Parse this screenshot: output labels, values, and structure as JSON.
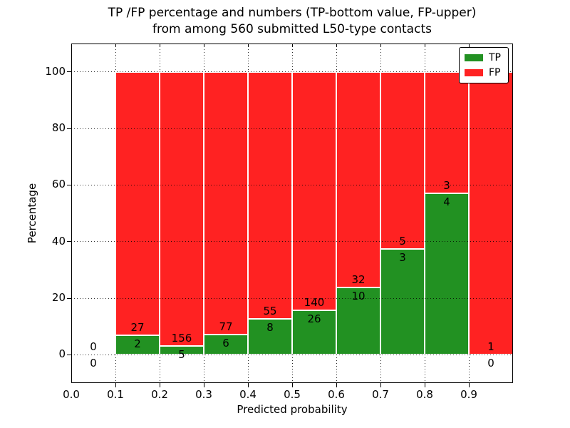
{
  "figure": {
    "title_line1": "TP /FP percentage and numbers (TP-bottom value, FP-upper)",
    "title_line2": "from among 560 submitted L50-type contacts"
  },
  "chart_data": {
    "type": "bar",
    "stacked": true,
    "title": "TP /FP percentage and numbers (TP-bottom value, FP-upper)\nfrom among 560 submitted L50-type contacts",
    "xlabel": "Predicted probability",
    "ylabel": "Percentage",
    "xlim": [
      0.0,
      1.0
    ],
    "ylim": [
      -10,
      110
    ],
    "grid": "dotted",
    "total_contacts": 560,
    "bin_width": 0.1,
    "xticks": [
      {
        "v": 0.0,
        "label": "0.0"
      },
      {
        "v": 0.1,
        "label": "0.1"
      },
      {
        "v": 0.2,
        "label": "0.2"
      },
      {
        "v": 0.3,
        "label": "0.3"
      },
      {
        "v": 0.4,
        "label": "0.4"
      },
      {
        "v": 0.5,
        "label": "0.5"
      },
      {
        "v": 0.6,
        "label": "0.6"
      },
      {
        "v": 0.7,
        "label": "0.7"
      },
      {
        "v": 0.8,
        "label": "0.8"
      },
      {
        "v": 0.9,
        "label": "0.9"
      }
    ],
    "yticks": [
      {
        "v": 0,
        "label": "0"
      },
      {
        "v": 20,
        "label": "20"
      },
      {
        "v": 40,
        "label": "40"
      },
      {
        "v": 60,
        "label": "60"
      },
      {
        "v": 80,
        "label": "80"
      },
      {
        "v": 100,
        "label": "100"
      }
    ],
    "series_note": "green TP bar from 0 to tp_pct, red FP bar from tp_pct to 100; labels show raw counts (TP below segment top, FP above)",
    "bins": [
      {
        "x0": 0.0,
        "x1": 0.1,
        "tp": 0,
        "fp": 0,
        "tp_pct": 0.0,
        "fp_pct": 0.0
      },
      {
        "x0": 0.1,
        "x1": 0.2,
        "tp": 2,
        "fp": 27,
        "tp_pct": 6.9,
        "fp_pct": 93.1
      },
      {
        "x0": 0.2,
        "x1": 0.3,
        "tp": 5,
        "fp": 156,
        "tp_pct": 3.11,
        "fp_pct": 96.89
      },
      {
        "x0": 0.3,
        "x1": 0.4,
        "tp": 6,
        "fp": 77,
        "tp_pct": 7.23,
        "fp_pct": 92.77
      },
      {
        "x0": 0.4,
        "x1": 0.5,
        "tp": 8,
        "fp": 55,
        "tp_pct": 12.7,
        "fp_pct": 87.3
      },
      {
        "x0": 0.5,
        "x1": 0.6,
        "tp": 26,
        "fp": 140,
        "tp_pct": 15.66,
        "fp_pct": 84.34
      },
      {
        "x0": 0.6,
        "x1": 0.7,
        "tp": 10,
        "fp": 32,
        "tp_pct": 23.81,
        "fp_pct": 76.19
      },
      {
        "x0": 0.7,
        "x1": 0.8,
        "tp": 3,
        "fp": 5,
        "tp_pct": 37.5,
        "fp_pct": 62.5
      },
      {
        "x0": 0.8,
        "x1": 0.9,
        "tp": 4,
        "fp": 3,
        "tp_pct": 57.14,
        "fp_pct": 42.86
      },
      {
        "x0": 0.9,
        "x1": 1.0,
        "tp": 0,
        "fp": 1,
        "tp_pct": 0.0,
        "fp_pct": 100.0
      }
    ],
    "colors": {
      "tp": "#229122",
      "fp": "#ff2222"
    },
    "legend": {
      "position": "upper right",
      "entries": [
        {
          "label": "TP",
          "color": "#229122"
        },
        {
          "label": "FP",
          "color": "#ff2222"
        }
      ]
    }
  }
}
